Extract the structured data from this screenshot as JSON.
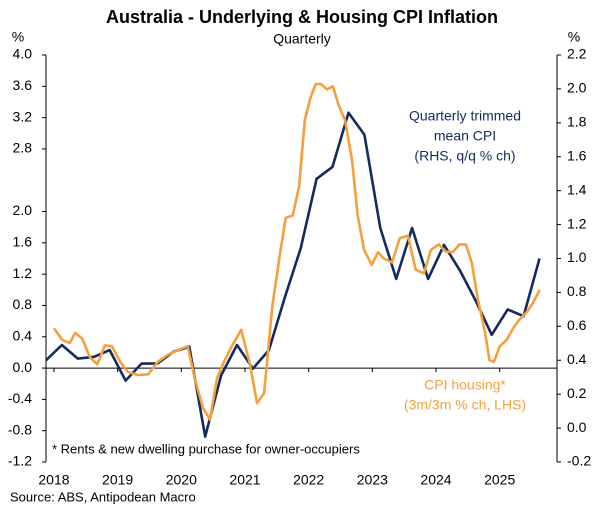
{
  "chart_data": {
    "type": "line",
    "title": "Australia - Underlying & Housing CPI Inflation",
    "subtitle": "Quarterly",
    "ylabel": "%",
    "y2label": "%",
    "xlim": [
      2017.875,
      2025.9
    ],
    "xticks": [
      2018,
      2019,
      2020,
      2021,
      2022,
      2023,
      2024,
      2025
    ],
    "ylim": [
      -1.2,
      4.0
    ],
    "yticks": [
      {
        "value": 4.0,
        "label": "4.0"
      },
      3.6,
      3.2,
      2.8,
      {
        "value": 2.0,
        "label": "2.0"
      },
      1.6,
      1.2,
      0.8,
      0.4,
      {
        "value": 0,
        "label": "0.0"
      },
      -0.4,
      -0.8,
      -1.2
    ],
    "y2lim": [
      -0.2,
      2.2
    ],
    "y2ticks": [
      2.2,
      {
        "value": 2.0,
        "label": "2.0"
      },
      1.8,
      1.6,
      1.4,
      1.2,
      {
        "value": 1.0,
        "label": "1.0"
      },
      0.8,
      0.6,
      0.4,
      0.2,
      {
        "value": 0,
        "label": "0.0"
      },
      -0.2
    ],
    "grid": false,
    "series": [
      {
        "name": [
          "Quarterly trimmed",
          "mean CPI",
          "(RHS, q/q % ch)"
        ],
        "color": "#142b5f",
        "axis": "y2",
        "x": [
          2017.875,
          2018.125,
          2018.375,
          2018.625,
          2018.875,
          2019.125,
          2019.375,
          2019.625,
          2019.875,
          2020.125,
          2020.375,
          2020.625,
          2020.875,
          2021.125,
          2021.375,
          2021.625,
          2021.875,
          2022.125,
          2022.375,
          2022.625,
          2022.875,
          2023.125,
          2023.375,
          2023.625,
          2023.875,
          2024.125,
          2024.375,
          2024.625,
          2024.875,
          2025.125,
          2025.375,
          2025.625
        ],
        "values": [
          0.4,
          0.49,
          0.41,
          0.42,
          0.46,
          0.28,
          0.38,
          0.38,
          0.45,
          0.48,
          -0.05,
          0.31,
          0.49,
          0.35,
          0.46,
          0.77,
          1.06,
          1.47,
          1.54,
          1.86,
          1.73,
          1.18,
          0.88,
          1.18,
          0.88,
          1.08,
          0.93,
          0.75,
          0.55,
          0.7,
          0.66,
          1.0
        ]
      },
      {
        "name": [
          "CPI housing*",
          "(3m/3m % ch, LHS)"
        ],
        "color": "#f5a03c",
        "axis": "y",
        "x": [
          2018.0,
          2018.13,
          2018.25,
          2018.33,
          2018.44,
          2018.57,
          2018.68,
          2018.8,
          2018.91,
          2019.04,
          2019.16,
          2019.32,
          2019.48,
          2019.63,
          2019.79,
          2019.95,
          2020.1,
          2020.21,
          2020.34,
          2020.45,
          2020.56,
          2020.67,
          2020.78,
          2020.94,
          2021.08,
          2021.19,
          2021.3,
          2021.43,
          2021.56,
          2021.64,
          2021.75,
          2021.85,
          2021.94,
          2022.03,
          2022.11,
          2022.19,
          2022.29,
          2022.38,
          2022.47,
          2022.57,
          2022.68,
          2022.77,
          2022.87,
          2022.99,
          2023.09,
          2023.18,
          2023.31,
          2023.43,
          2023.56,
          2023.68,
          2023.81,
          2023.92,
          2024.04,
          2024.15,
          2024.26,
          2024.37,
          2024.47,
          2024.56,
          2024.66,
          2024.77,
          2024.84,
          2024.91,
          2025.0,
          2025.11,
          2025.21,
          2025.3,
          2025.43,
          2025.52,
          2025.63
        ],
        "values": [
          0.51,
          0.36,
          0.32,
          0.45,
          0.38,
          0.13,
          0.05,
          0.29,
          0.28,
          0.08,
          -0.05,
          -0.09,
          -0.08,
          0.08,
          0.17,
          0.23,
          0.28,
          -0.13,
          -0.51,
          -0.66,
          -0.13,
          0.08,
          0.26,
          0.49,
          0.04,
          -0.45,
          -0.32,
          0.8,
          1.51,
          1.92,
          1.95,
          2.32,
          3.17,
          3.46,
          3.63,
          3.63,
          3.56,
          3.6,
          3.36,
          3.17,
          2.66,
          1.95,
          1.51,
          1.32,
          1.48,
          1.4,
          1.35,
          1.66,
          1.69,
          1.26,
          1.21,
          1.51,
          1.58,
          1.49,
          1.48,
          1.58,
          1.58,
          1.35,
          0.87,
          0.46,
          0.1,
          0.08,
          0.28,
          0.36,
          0.51,
          0.61,
          0.72,
          0.83,
          1.0
        ]
      }
    ],
    "annotations": [
      "* Rents & new dwelling purchase for owner-occupiers"
    ],
    "source": "Source: ABS, Antipodean Macro"
  }
}
